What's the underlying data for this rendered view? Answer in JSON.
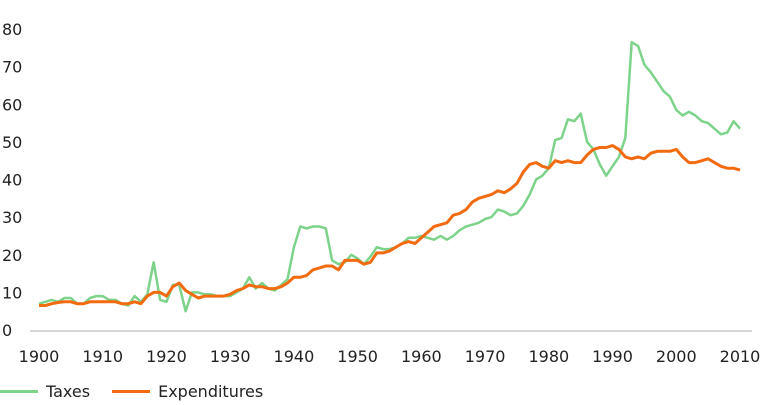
{
  "chart_data": {
    "type": "line",
    "title": "",
    "xlabel": "",
    "ylabel": "",
    "xlim": [
      1900,
      2010
    ],
    "ylim": [
      0,
      80
    ],
    "x_ticks": [
      "1900",
      "1910",
      "1920",
      "1930",
      "1940",
      "1950",
      "1960",
      "1970",
      "1980",
      "1990",
      "2000",
      "2010"
    ],
    "y_ticks": [
      "0",
      "10",
      "20",
      "30",
      "40",
      "50",
      "60",
      "70",
      "80"
    ],
    "grid": false,
    "legend_position": "bottom-left",
    "x": [
      1900,
      1901,
      1902,
      1903,
      1904,
      1905,
      1906,
      1907,
      1908,
      1909,
      1910,
      1911,
      1912,
      1913,
      1914,
      1915,
      1916,
      1917,
      1918,
      1919,
      1920,
      1921,
      1922,
      1923,
      1924,
      1925,
      1926,
      1927,
      1928,
      1929,
      1930,
      1931,
      1932,
      1933,
      1934,
      1935,
      1936,
      1937,
      1938,
      1939,
      1940,
      1941,
      1942,
      1943,
      1944,
      1945,
      1946,
      1947,
      1948,
      1949,
      1950,
      1951,
      1952,
      1953,
      1954,
      1955,
      1956,
      1957,
      1958,
      1959,
      1960,
      1961,
      1962,
      1963,
      1964,
      1965,
      1966,
      1967,
      1968,
      1969,
      1970,
      1971,
      1972,
      1973,
      1974,
      1975,
      1976,
      1977,
      1978,
      1979,
      1980,
      1981,
      1982,
      1983,
      1984,
      1985,
      1986,
      1987,
      1988,
      1989,
      1990,
      1991,
      1992,
      1993,
      1994,
      1995,
      1996,
      1997,
      1998,
      1999,
      2000,
      2001,
      2002,
      2003,
      2004,
      2005,
      2006,
      2007,
      2008,
      2009,
      2010
    ],
    "series": [
      {
        "name": "Taxes",
        "color": "#7dd38a",
        "values": [
          7,
          7.5,
          8,
          7.5,
          8.5,
          8.5,
          7,
          7,
          8.5,
          9,
          9,
          8,
          8,
          7,
          6.5,
          9,
          7.5,
          9.5,
          18,
          8,
          7.5,
          12,
          12,
          5,
          10,
          10,
          9.5,
          9.5,
          9,
          9,
          9,
          10,
          11,
          14,
          11,
          12.5,
          11,
          10.5,
          12,
          13.5,
          22,
          27.5,
          27,
          27.5,
          27.5,
          27,
          18.5,
          17.5,
          18,
          20,
          19,
          17.5,
          19.5,
          22,
          21.5,
          21.5,
          22,
          23,
          24.5,
          24.5,
          25,
          24.5,
          24,
          25,
          24,
          25,
          26.5,
          27.5,
          28,
          28.5,
          29.5,
          30,
          32,
          31.5,
          30.5,
          31,
          33,
          36,
          40,
          41,
          43,
          50.5,
          51,
          56,
          55.5,
          57.5,
          50,
          48,
          44,
          41,
          43.5,
          46,
          51,
          76.5,
          75.5,
          70.5,
          68.5,
          66,
          63.5,
          62,
          58.5,
          57,
          58,
          57,
          55.5,
          55,
          53.5,
          52,
          52.5,
          55.5,
          53.5
        ]
      },
      {
        "name": "Expenditures",
        "color": "#f26b10",
        "values": [
          6.5,
          6.5,
          7,
          7.3,
          7.5,
          7.5,
          7,
          7,
          7.5,
          7.5,
          7.5,
          7.5,
          7.5,
          7,
          7,
          7.5,
          7,
          9,
          10,
          10,
          9,
          11.5,
          12.5,
          10.5,
          9.5,
          8.5,
          9,
          9,
          9,
          9,
          9.5,
          10.5,
          11,
          12,
          11.5,
          11.5,
          11,
          11,
          11.5,
          12.5,
          14,
          14,
          14.5,
          16,
          16.5,
          17,
          17,
          16,
          18.5,
          18.5,
          18.5,
          17.5,
          18,
          20.5,
          20.5,
          21,
          22,
          23,
          23.5,
          23,
          24.5,
          26,
          27.5,
          28,
          28.5,
          30.5,
          31,
          32,
          34,
          35,
          35.5,
          36,
          37,
          36.5,
          37.5,
          39,
          42,
          44,
          44.5,
          43.5,
          43,
          45,
          44.5,
          45,
          44.5,
          44.5,
          46.5,
          48,
          48.5,
          48.5,
          49,
          48,
          46,
          45.5,
          46,
          45.5,
          47,
          47.5,
          47.5,
          47.5,
          48,
          46,
          44.5,
          44.5,
          45,
          45.5,
          44.5,
          43.5,
          43,
          43,
          42.5
        ]
      }
    ]
  }
}
